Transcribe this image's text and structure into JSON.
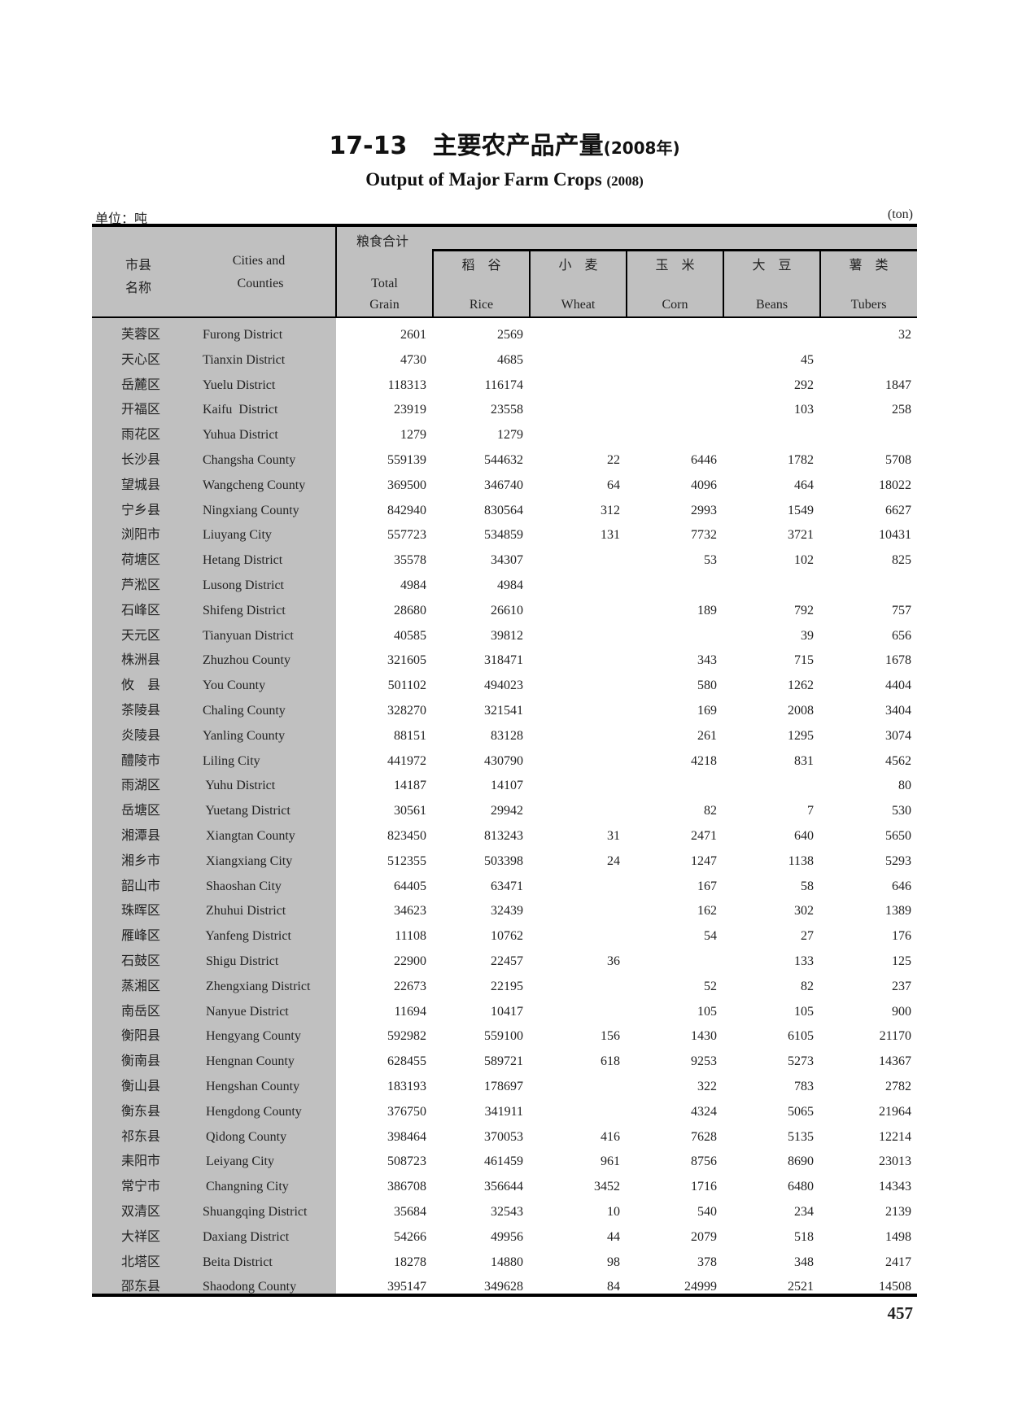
{
  "title": {
    "number": "17-13",
    "cn": "主要农产品产量",
    "year": "(2008年)"
  },
  "subtitle": {
    "text": "Output of Major Farm Crops",
    "year": "(2008)"
  },
  "unit": {
    "cn": "单位：吨",
    "en": "(ton)"
  },
  "header": {
    "region_cn_1": "市县",
    "region_cn_2": "名称",
    "region_en_1": "Cities and",
    "region_en_2": "Counties",
    "total_cn": "粮食合计",
    "total_en_1": "Total",
    "total_en_2": "Grain",
    "crops": [
      {
        "cn": "稻　谷",
        "en": "Rice"
      },
      {
        "cn": "小　麦",
        "en": "Wheat"
      },
      {
        "cn": "玉　米",
        "en": "Corn"
      },
      {
        "cn": "大　豆",
        "en": "Beans"
      },
      {
        "cn": "薯　类",
        "en": "Tubers"
      }
    ]
  },
  "rows": [
    [
      "芙蓉区",
      "Furong District",
      "2601",
      "2569",
      "",
      "",
      "",
      "32"
    ],
    [
      "天心区",
      "Tianxin District",
      "4730",
      "4685",
      "",
      "",
      "45",
      ""
    ],
    [
      "岳麓区",
      "Yuelu District",
      "118313",
      "116174",
      "",
      "",
      "292",
      "1847"
    ],
    [
      "开福区",
      "Kaifu  District",
      "23919",
      "23558",
      "",
      "",
      "103",
      "258"
    ],
    [
      "雨花区",
      "Yuhua District",
      "1279",
      "1279",
      "",
      "",
      "",
      ""
    ],
    [
      "长沙县",
      "Changsha County",
      "559139",
      "544632",
      "22",
      "6446",
      "1782",
      "5708"
    ],
    [
      "望城县",
      "Wangcheng County",
      "369500",
      "346740",
      "64",
      "4096",
      "464",
      "18022"
    ],
    [
      "宁乡县",
      "Ningxiang County",
      "842940",
      "830564",
      "312",
      "2993",
      "1549",
      "6627"
    ],
    [
      "浏阳市",
      "Liuyang City",
      "557723",
      "534859",
      "131",
      "7732",
      "3721",
      "10431"
    ],
    [
      "荷塘区",
      "Hetang District",
      "35578",
      "34307",
      "",
      "53",
      "102",
      "825"
    ],
    [
      "芦淞区",
      "Lusong District",
      "4984",
      "4984",
      "",
      "",
      "",
      ""
    ],
    [
      "石峰区",
      "Shifeng District",
      "28680",
      "26610",
      "",
      "189",
      "792",
      "757"
    ],
    [
      "天元区",
      "Tianyuan District",
      "40585",
      "39812",
      "",
      "",
      "39",
      "656"
    ],
    [
      "株洲县",
      "Zhuzhou County",
      "321605",
      "318471",
      "",
      "343",
      "715",
      "1678"
    ],
    [
      "攸　县",
      "You County",
      "501102",
      "494023",
      "",
      "580",
      "1262",
      "4404"
    ],
    [
      "茶陵县",
      "Chaling County",
      "328270",
      "321541",
      "",
      "169",
      "2008",
      "3404"
    ],
    [
      "炎陵县",
      "Yanling County",
      "88151",
      "83128",
      "",
      "261",
      "1295",
      "3074"
    ],
    [
      "醴陵市",
      "Liling City",
      "441972",
      "430790",
      "",
      "4218",
      "831",
      "4562"
    ],
    [
      "雨湖区",
      " Yuhu District",
      "14187",
      "14107",
      "",
      "",
      "",
      "80"
    ],
    [
      "岳塘区",
      " Yuetang District",
      "30561",
      "29942",
      "",
      "82",
      "7",
      "530"
    ],
    [
      "湘潭县",
      " Xiangtan County",
      "823450",
      "813243",
      "31",
      "2471",
      "640",
      "5650"
    ],
    [
      "湘乡市",
      " Xiangxiang City",
      "512355",
      "503398",
      "24",
      "1247",
      "1138",
      "5293"
    ],
    [
      "韶山市",
      " Shaoshan City",
      "64405",
      "63471",
      "",
      "167",
      "58",
      "646"
    ],
    [
      "珠晖区",
      " Zhuhui District",
      "34623",
      "32439",
      "",
      "162",
      "302",
      "1389"
    ],
    [
      "雁峰区",
      " Yanfeng District",
      "11108",
      "10762",
      "",
      "54",
      "27",
      "176"
    ],
    [
      "石鼓区",
      " Shigu District",
      "22900",
      "22457",
      "36",
      "",
      "133",
      "125"
    ],
    [
      "蒸湘区",
      " Zhengxiang District",
      "22673",
      "22195",
      "",
      "52",
      "82",
      "237"
    ],
    [
      "南岳区",
      " Nanyue District",
      "11694",
      "10417",
      "",
      "105",
      "105",
      "900"
    ],
    [
      "衡阳县",
      " Hengyang County",
      "592982",
      "559100",
      "156",
      "1430",
      "6105",
      "21170"
    ],
    [
      "衡南县",
      " Hengnan County",
      "628455",
      "589721",
      "618",
      "9253",
      "5273",
      "14367"
    ],
    [
      "衡山县",
      " Hengshan County",
      "183193",
      "178697",
      "",
      "322",
      "783",
      "2782"
    ],
    [
      "衡东县",
      " Hengdong County",
      "376750",
      "341911",
      "",
      "4324",
      "5065",
      "21964"
    ],
    [
      "祁东县",
      " Qidong County",
      "398464",
      "370053",
      "416",
      "7628",
      "5135",
      "12214"
    ],
    [
      "耒阳市",
      " Leiyang City",
      "508723",
      "461459",
      "961",
      "8756",
      "8690",
      "23013"
    ],
    [
      "常宁市",
      " Changning City",
      "386708",
      "356644",
      "3452",
      "1716",
      "6480",
      "14343"
    ],
    [
      "双清区",
      "Shuangqing District",
      "35684",
      "32543",
      "10",
      "540",
      "234",
      "2139"
    ],
    [
      "大祥区",
      "Daxiang District",
      "54266",
      "49956",
      "44",
      "2079",
      "518",
      "1498"
    ],
    [
      "北塔区",
      "Beita District",
      "18278",
      "14880",
      "98",
      "378",
      "348",
      "2417"
    ],
    [
      "邵东县",
      "Shaodong County",
      "395147",
      "349628",
      "84",
      "24999",
      "2521",
      "14508"
    ]
  ],
  "page_number": "457"
}
